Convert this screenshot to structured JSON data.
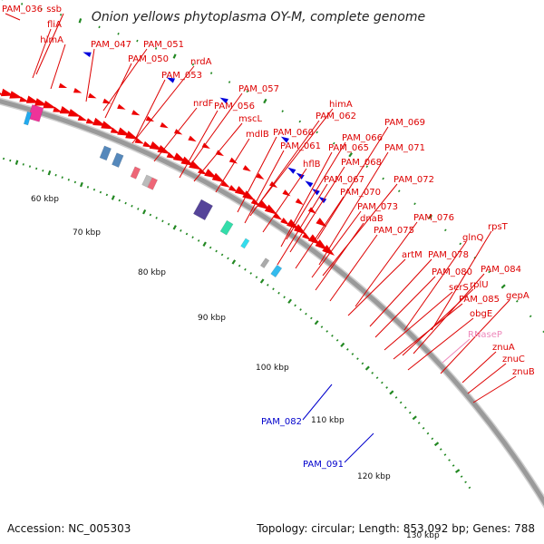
{
  "title": "Onion yellows phytoplasma OY-M, complete genome",
  "footer": {
    "accession": "Accession: NC_005303",
    "summary": "Topology: circular; Length: 853,092 bp; Genes: 788"
  },
  "colors": {
    "forward_label": "#dd0000",
    "reverse_label": "#0000cc",
    "rna_label": "#ee88bb",
    "cds_arrow": "#ee0000",
    "reverse_arrow": "#0000dd",
    "backbone": "#9a9a9a",
    "tick": "#228822"
  },
  "scale_labels": [
    "60 kbp",
    "70 kbp",
    "80 kbp",
    "90 kbp",
    "100 kbp",
    "110 kbp",
    "120 kbp",
    "130 kbp"
  ],
  "forward_labels": [
    "PAM_036",
    "ssb",
    "fliA",
    "himA",
    "PAM_047",
    "PAM_051",
    "PAM_050",
    "nrdA",
    "PAM_053",
    "nrdF",
    "PAM_057",
    "PAM_056",
    "mscL",
    "himA",
    "PAM_062",
    "mdlB",
    "PAM_060",
    "PAM_069",
    "PAM_066",
    "PAM_061",
    "PAM_065",
    "PAM_071",
    "hflB",
    "PAM_068",
    "PAM_067",
    "PAM_072",
    "PAM_070",
    "PAM_073",
    "dnaB",
    "PAM_076",
    "PAM_075",
    "rpsT",
    "glnQ",
    "artM",
    "PAM_078",
    "PAM_084",
    "PAM_080",
    "serS",
    "rplU",
    "PAM_085",
    "gepA",
    "obgE",
    "znuA",
    "znuC",
    "znuB"
  ],
  "rna_labels": [
    "RNaseP"
  ],
  "reverse_labels": [
    "PAM_082",
    "PAM_091"
  ]
}
